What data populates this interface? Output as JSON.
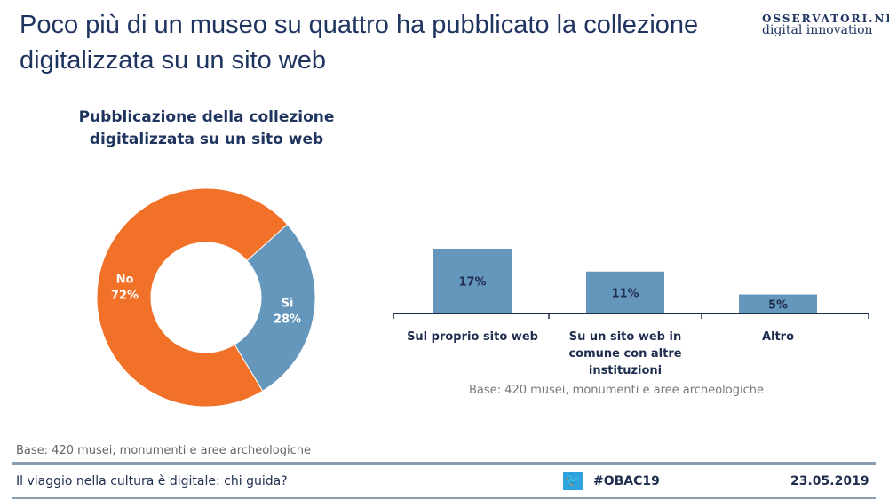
{
  "header": {
    "title": "Poco più di un museo su quattro ha pubblicato la collezione digitalizzata su un sito web",
    "logo_line1": "OSSERVATORI.NET",
    "logo_line2": "digital innovation"
  },
  "chart_data": [
    {
      "type": "pie",
      "title": "Pubblicazione della collezione digitalizzata su un sito web",
      "donut": true,
      "slices": [
        {
          "label": "Sì",
          "value": 28,
          "display": "28%",
          "color": "#6596bb"
        },
        {
          "label": "No",
          "value": 72,
          "display": "72%",
          "color": "#f07127"
        }
      ],
      "note": "Base: 420 musei, monumenti e aree archeologiche"
    },
    {
      "type": "bar",
      "categories": [
        "Sul proprio sito web",
        "Su un sito web in comune con altre instituzioni",
        "Altro"
      ],
      "values": [
        17,
        11,
        5
      ],
      "labels": [
        "17%",
        "11%",
        "5%"
      ],
      "color": "#6596bb",
      "ylim": [
        0,
        20
      ],
      "note": "Base: 420 musei, monumenti e aree archeologiche"
    }
  ],
  "footer": {
    "left": "Il viaggio nella cultura è digitale: chi guida?",
    "hashtag": "#OBAC19",
    "date": "23.05.2019",
    "twitter_icon": "twitter-icon"
  }
}
